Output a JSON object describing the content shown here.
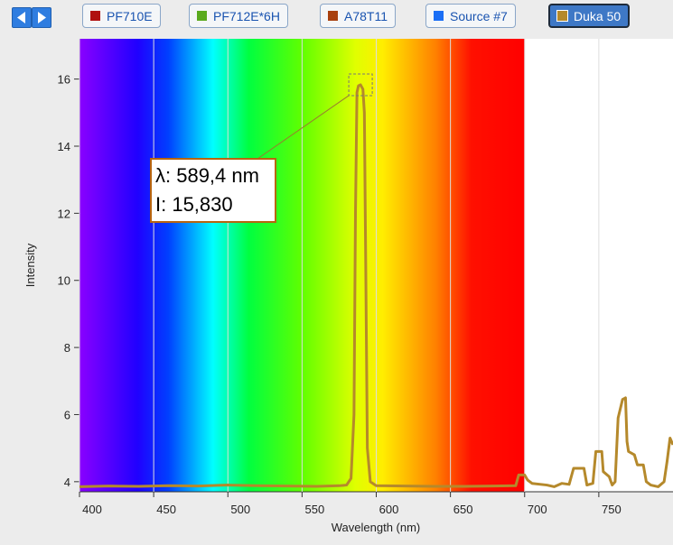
{
  "chart_data": {
    "type": "line",
    "x_label": "Wavelength (nm)",
    "y_label": "Intensity",
    "x": [
      400,
      420,
      440,
      460,
      480,
      500,
      520,
      540,
      560,
      575,
      580,
      583,
      585,
      586,
      587,
      588,
      589.4,
      591,
      592,
      593,
      594,
      596,
      600,
      620,
      640,
      660,
      680,
      694,
      696,
      700,
      702,
      705,
      715,
      720,
      725,
      730,
      733,
      740,
      742,
      746,
      748,
      752,
      753,
      757,
      759,
      761,
      763,
      766,
      768,
      769,
      770,
      774,
      776,
      780,
      782,
      785,
      790,
      794,
      796,
      798,
      800
    ],
    "series": [
      {
        "name": "PF710E",
        "color": "#b01010"
      },
      {
        "name": "PF712E*6H",
        "color": "#5aaa1e"
      },
      {
        "name": "A78T11",
        "color": "#a8400f"
      },
      {
        "name": "Source #7",
        "color": "#1a6ef5"
      },
      {
        "name": "Duka 50",
        "color": "#b5892b",
        "selected": true,
        "values": [
          3.85,
          3.87,
          3.86,
          3.88,
          3.87,
          3.9,
          3.88,
          3.87,
          3.86,
          3.88,
          3.9,
          4.1,
          6,
          12,
          15.6,
          15.8,
          15.83,
          15.7,
          15,
          10,
          5,
          4,
          3.88,
          3.87,
          3.86,
          3.86,
          3.87,
          3.88,
          4.2,
          4.2,
          4.05,
          3.95,
          3.9,
          3.85,
          3.95,
          3.92,
          4.4,
          4.4,
          3.9,
          3.95,
          4.9,
          4.9,
          4.3,
          4.15,
          3.9,
          4.0,
          5.9,
          6.45,
          6.5,
          5.2,
          4.9,
          4.8,
          4.5,
          4.5,
          4.0,
          3.9,
          3.85,
          4.0,
          4.6,
          5.3,
          5.1
        ]
      }
    ],
    "xlim": [
      400,
      800
    ],
    "xticks": [
      400,
      450,
      500,
      550,
      600,
      650,
      700,
      750
    ],
    "ylim": [
      3.7,
      17.2
    ],
    "yticks": [
      4,
      6,
      8,
      10,
      12,
      14,
      16
    ],
    "annotation": {
      "wavelength_label": "λ: 589,4 nm",
      "intensity_label": "I: 15,830",
      "x": 589.4,
      "y": 15.83
    }
  }
}
